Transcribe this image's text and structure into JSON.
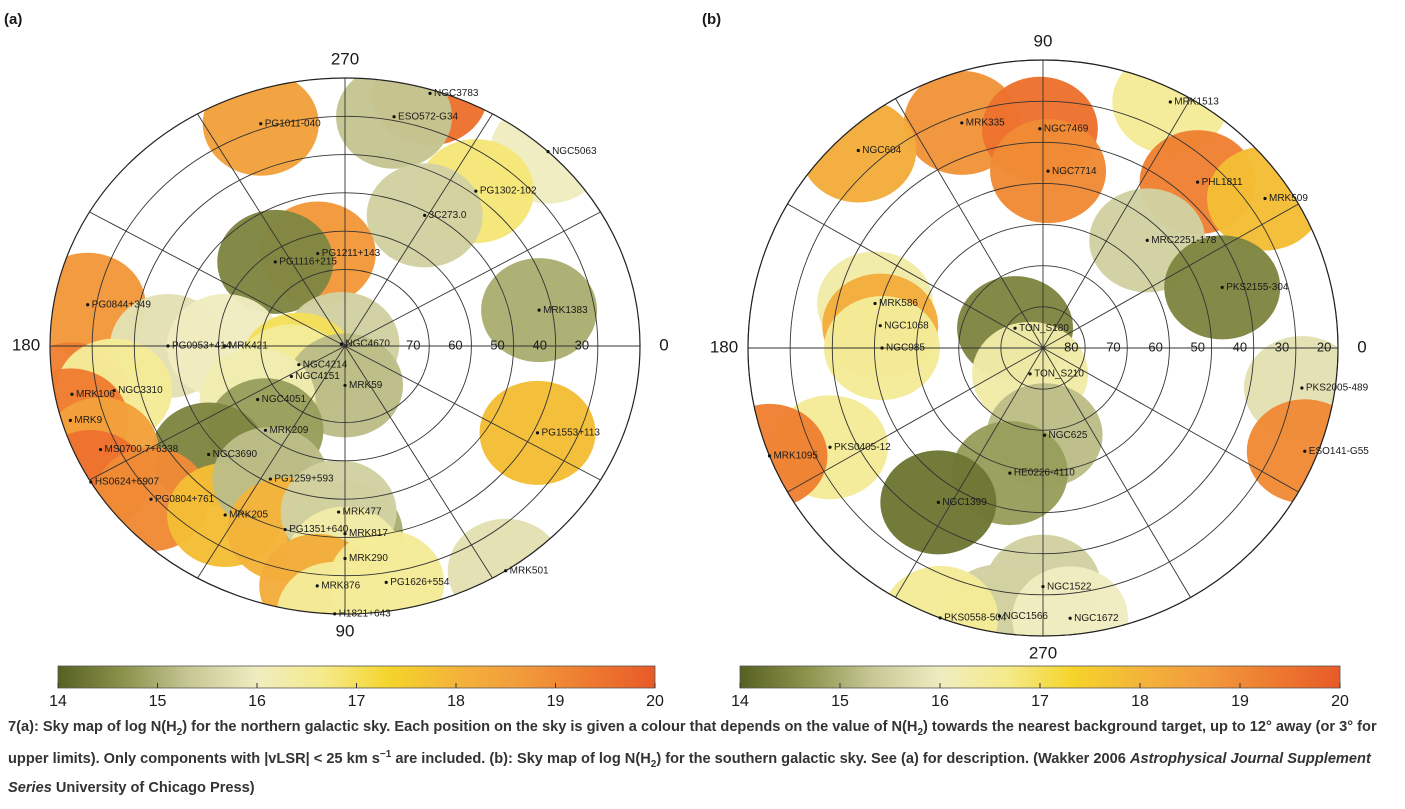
{
  "chart_data": [
    {
      "type": "skymap",
      "panel_label": "(a)",
      "l_direction": "clockwise",
      "blim": [
        90,
        20
      ],
      "rticks": [
        70,
        60,
        50,
        40,
        30
      ],
      "lticks": [
        0,
        90,
        180,
        270
      ],
      "sources": [
        {
          "name": "NGC3783",
          "l": 287,
          "b": 21,
          "value": 19.5
        },
        {
          "name": "ESO572-G34",
          "l": 281,
          "b": 29,
          "value": 15.3
        },
        {
          "name": "NGC5063",
          "l": 313.5,
          "b": 20,
          "value": 16
        },
        {
          "name": "PG1011-040",
          "l": 251,
          "b": 28.6,
          "value": 18.5
        },
        {
          "name": "PG1302-102",
          "l": 307.5,
          "b": 39,
          "value": 16.8
        },
        {
          "name": "3C273.0",
          "l": 299,
          "b": 51,
          "value": 15.5
        },
        {
          "name": "PG1211+143",
          "l": 255,
          "b": 65,
          "value": 18.7
        },
        {
          "name": "PG1116+215",
          "l": 233,
          "b": 62.5,
          "value": 14.5
        },
        {
          "name": "MRK1383",
          "l": 348.5,
          "b": 43,
          "value": 15
        },
        {
          "name": "PG0844+349",
          "l": 190,
          "b": 28,
          "value": 18.7
        },
        {
          "name": "PG0953+414",
          "l": 180,
          "b": 48,
          "value": 15.8
        },
        {
          "name": "MRK421",
          "l": 180,
          "b": 61.5,
          "value": 16
        },
        {
          "name": "NGC4670",
          "l": 212,
          "b": 89,
          "value": 15.5
        },
        {
          "name": "NGC4214",
          "l": 156,
          "b": 78,
          "value": 17
        },
        {
          "name": "NGC4151",
          "l": 148,
          "b": 75,
          "value": 16.5
        },
        {
          "name": "MRK59",
          "l": 90,
          "b": 79.7,
          "value": 15.2
        },
        {
          "name": "NGC4051",
          "l": 146,
          "b": 65,
          "value": 16.2
        },
        {
          "name": "MRK209",
          "l": 130.6,
          "b": 61,
          "value": 14.8
        },
        {
          "name": "NGC3690",
          "l": 138.8,
          "b": 47,
          "value": 14.5
        },
        {
          "name": "MRK106",
          "l": 169,
          "b": 24,
          "value": 19.2
        },
        {
          "name": "NGC3310",
          "l": 168,
          "b": 34,
          "value": 16.5
        },
        {
          "name": "MRK9",
          "l": 163.4,
          "b": 22,
          "value": 19.3
        },
        {
          "name": "MS0700.7+6338",
          "l": 155,
          "b": 26,
          "value": 18.5
        },
        {
          "name": "HS0624+6907",
          "l": 149.5,
          "b": 20,
          "value": 19.5
        },
        {
          "name": "PG0804+761",
          "l": 139,
          "b": 29,
          "value": 19
        },
        {
          "name": "MRK205",
          "l": 122.8,
          "b": 37.5,
          "value": 17.8
        },
        {
          "name": "PG1259+593",
          "l": 117,
          "b": 51,
          "value": 15.2
        },
        {
          "name": "PG1351+640",
          "l": 106.5,
          "b": 40,
          "value": 18
        },
        {
          "name": "MRK817",
          "l": 90,
          "b": 41,
          "value": 15
        },
        {
          "name": "MRK477",
          "l": 92,
          "b": 46.6,
          "value": 15.5
        },
        {
          "name": "MRK290",
          "l": 90,
          "b": 34.5,
          "value": 16.3
        },
        {
          "name": "MRK876",
          "l": 96,
          "b": 27,
          "value": 18.2
        },
        {
          "name": "PG1626+554",
          "l": 81,
          "b": 27.5,
          "value": 16.5
        },
        {
          "name": "MRK501",
          "l": 57,
          "b": 20,
          "value": 15.8
        },
        {
          "name": "H1821+643",
          "l": 92,
          "b": 20,
          "value": 16.5
        },
        {
          "name": "PG1553+113",
          "l": 26.4,
          "b": 39,
          "value": 17.8
        }
      ],
      "colorbar": {
        "lim": [
          14,
          20
        ],
        "ticks": [
          14,
          15,
          16,
          17,
          18,
          19,
          20
        ],
        "colors": [
          "#566021",
          "#8c934c",
          "#c8c896",
          "#efecc0",
          "#f5ea8a",
          "#f5d42a",
          "#f4b43a",
          "#f29a3c",
          "#ee7a30",
          "#e85a28"
        ]
      }
    },
    {
      "type": "skymap",
      "panel_label": "(b)",
      "l_direction": "counterclockwise",
      "blim": [
        -90,
        -20
      ],
      "rticks": [
        -80,
        -70,
        -60,
        -50,
        -40,
        -30,
        -20
      ],
      "lticks": [
        0,
        90,
        180,
        270
      ],
      "sources": [
        {
          "name": "MRK1513",
          "l": 63.2,
          "b": -23,
          "value": 16.5
        },
        {
          "name": "MRK335",
          "l": 109.4,
          "b": -32,
          "value": 18.8
        },
        {
          "name": "NGC7469",
          "l": 90.8,
          "b": -36.7,
          "value": 19.5
        },
        {
          "name": "NGC604",
          "l": 132.4,
          "b": -25,
          "value": 18.2
        },
        {
          "name": "NGC7714",
          "l": 88.4,
          "b": -47,
          "value": 19
        },
        {
          "name": "PHL1811",
          "l": 47.7,
          "b": -35.5,
          "value": 19.2
        },
        {
          "name": "MRK509",
          "l": 34.6,
          "b": -26,
          "value": 17.8
        },
        {
          "name": "MRC2251-178",
          "l": 46.6,
          "b": -54,
          "value": 15.5
        },
        {
          "name": "PKS2155-304",
          "l": 19.1,
          "b": -45,
          "value": 14.5
        },
        {
          "name": "MRK586",
          "l": 164.8,
          "b": -48.7,
          "value": 16.3
        },
        {
          "name": "NGC1068",
          "l": 172,
          "b": -51,
          "value": 18.2
        },
        {
          "name": "TON_S180",
          "l": 144,
          "b": -81.8,
          "value": 14.5
        },
        {
          "name": "NGC985",
          "l": 180,
          "b": -51.8,
          "value": 16.5
        },
        {
          "name": "TON_S210",
          "l": 244,
          "b": -83,
          "value": 16.3
        },
        {
          "name": "PKS2005-489",
          "l": 351,
          "b": -27.8,
          "value": 15.8
        },
        {
          "name": "NGC625",
          "l": 271,
          "b": -68.8,
          "value": 15.2
        },
        {
          "name": "ESO141-G55",
          "l": 338,
          "b": -23,
          "value": 19
        },
        {
          "name": "PKS0405-12",
          "l": 205.5,
          "b": -34,
          "value": 16.5
        },
        {
          "name": "MRK1095",
          "l": 202,
          "b": -20,
          "value": 19.2
        },
        {
          "name": "HE0226-4110",
          "l": 255.5,
          "b": -58.6,
          "value": 14.8
        },
        {
          "name": "NGC1399",
          "l": 236.5,
          "b": -45,
          "value": 14.3
        },
        {
          "name": "NGC1522",
          "l": 270,
          "b": -32,
          "value": 15.5
        },
        {
          "name": "NGC1566",
          "l": 261,
          "b": -24,
          "value": 15.5
        },
        {
          "name": "NGC1672",
          "l": 275.6,
          "b": -24,
          "value": 16
        },
        {
          "name": "PKS0558-504",
          "l": 249.6,
          "b": -20,
          "value": 16.5
        }
      ],
      "colorbar": {
        "lim": [
          14,
          20
        ],
        "ticks": [
          14,
          15,
          16,
          17,
          18,
          19,
          20
        ],
        "colors": [
          "#566021",
          "#8c934c",
          "#c8c896",
          "#efecc0",
          "#f5ea8a",
          "#f5d42a",
          "#f4b43a",
          "#f29a3c",
          "#ee7a30",
          "#e85a28"
        ]
      }
    }
  ],
  "caption": [
    {
      "text": "7(a): Sky map of log N(H",
      "style": "normal"
    },
    {
      "text": "2",
      "style": "sub"
    },
    {
      "text": ") for the northern galactic sky. Each position on the sky is given a colour that depends on the value of N(H",
      "style": "normal"
    },
    {
      "text": "2",
      "style": "sub"
    },
    {
      "text": ") towards the nearest background target, up to 12° away (or 3° for upper limits). Only components with |vLSR| < 25 km s",
      "style": "normal"
    },
    {
      "text": "−1",
      "style": "sup"
    },
    {
      "text": " are included. (b): Sky map of log N(H",
      "style": "normal"
    },
    {
      "text": "2",
      "style": "sub"
    },
    {
      "text": ") for the southern galactic sky. See (a) for description. (Wakker 2006 ",
      "style": "normal"
    },
    {
      "text": "Astrophysical Journal Supplement Series",
      "style": "italic"
    },
    {
      "text": " University of Chicago Press)",
      "style": "normal"
    }
  ]
}
